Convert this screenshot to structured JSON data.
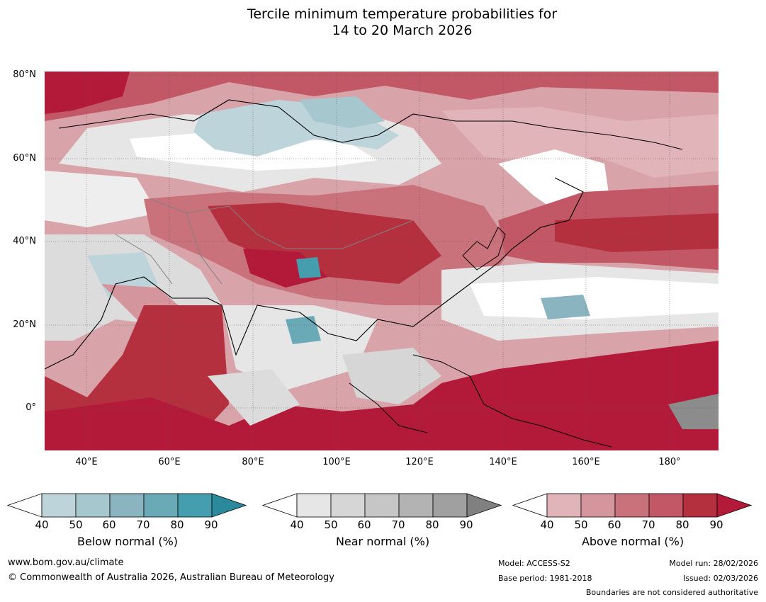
{
  "title_line1": "Tercile minimum temperature probabilities for",
  "title_line2": "14 to 20 March 2026",
  "lat_labels": [
    "80°N",
    "60°N",
    "40°N",
    "20°N",
    "0°"
  ],
  "lon_labels": [
    "40°E",
    "60°E",
    "80°E",
    "100°E",
    "120°E",
    "140°E",
    "160°E",
    "180°"
  ],
  "colorbars": [
    {
      "title": "Below normal (%)",
      "ticks": [
        "40",
        "50",
        "60",
        "70",
        "80",
        "90"
      ],
      "colors": [
        "#ffffff",
        "#bed4db",
        "#a6c7cd",
        "#8ab5c0",
        "#6aa9b6",
        "#459eae",
        "#2a8a9c"
      ]
    },
    {
      "title": "Near normal (%)",
      "ticks": [
        "40",
        "50",
        "60",
        "70",
        "80",
        "90"
      ],
      "colors": [
        "#ffffff",
        "#e6e6e6",
        "#d6d6d6",
        "#c6c6c6",
        "#b3b3b3",
        "#a0a0a0",
        "#808080"
      ]
    },
    {
      "title": "Above normal (%)",
      "ticks": [
        "40",
        "50",
        "60",
        "70",
        "80",
        "90"
      ],
      "colors": [
        "#ffffff",
        "#e0b4b9",
        "#d5959c",
        "#c9727c",
        "#c25766",
        "#b5303f",
        "#b31a39"
      ]
    }
  ],
  "footer": {
    "website": "www.bom.gov.au/climate",
    "copyright": "© Commonwealth of Australia 2026, Australian Bureau of Meteorology",
    "model": "Model: ACCESS-S2",
    "base_period": "Base period: 1981-2018",
    "model_run": "Model run: 28/02/2026",
    "issued": "Issued: 02/03/2026",
    "disclaimer": "Boundaries are not considered authoritative"
  }
}
